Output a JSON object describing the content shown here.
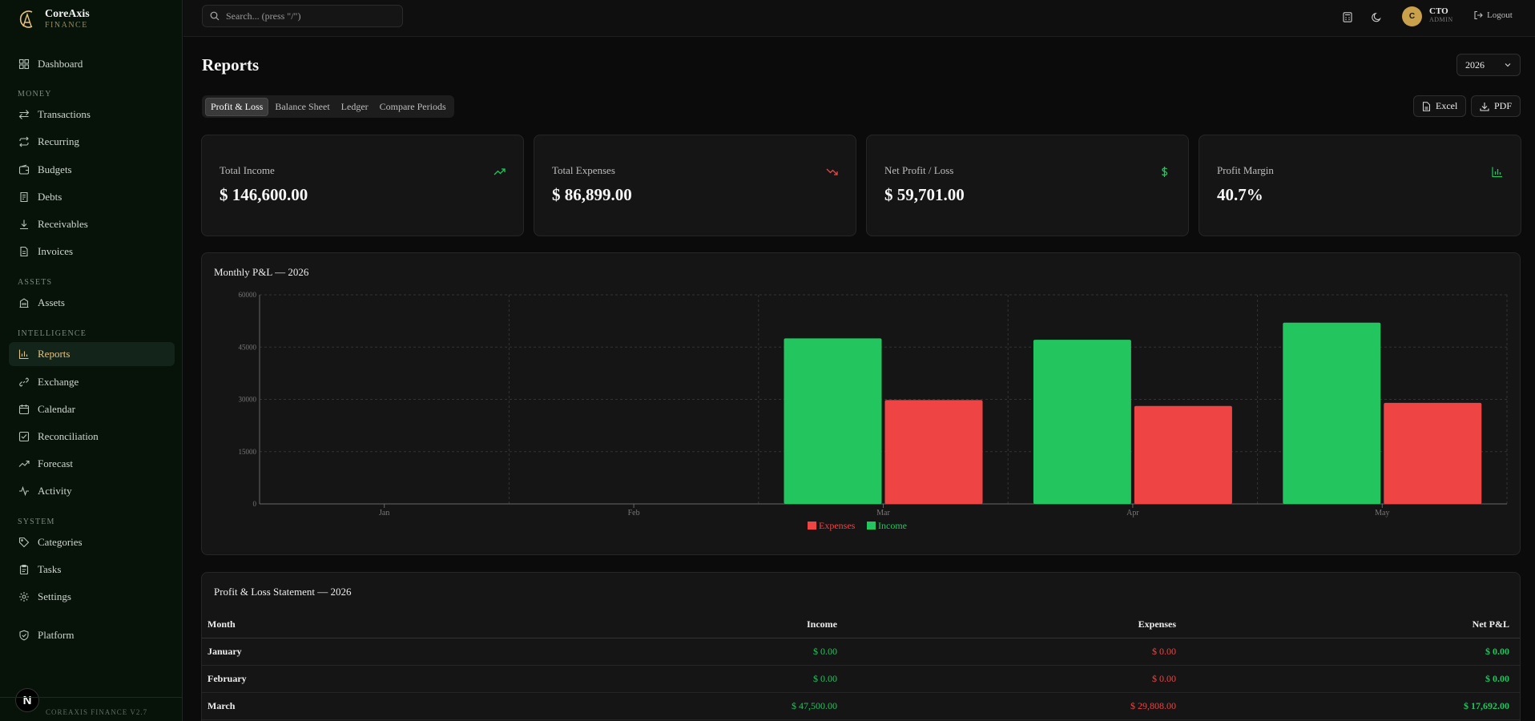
{
  "brand": {
    "name": "CoreAxis",
    "sub": "FINANCE",
    "accent": "#e8c27a"
  },
  "sidebar": {
    "items": [
      {
        "label": "Dashboard",
        "icon": "grid-icon"
      },
      {
        "group": "MONEY"
      },
      {
        "label": "Transactions",
        "icon": "arrows-left-right-icon"
      },
      {
        "label": "Recurring",
        "icon": "repeat-icon"
      },
      {
        "label": "Budgets",
        "icon": "wallet-icon"
      },
      {
        "label": "Debts",
        "icon": "credit-card-icon"
      },
      {
        "label": "Receivables",
        "icon": "download-arrow-icon"
      },
      {
        "label": "Invoices",
        "icon": "file-icon"
      },
      {
        "group": "ASSETS"
      },
      {
        "label": "Assets",
        "icon": "building-icon"
      },
      {
        "group": "INTELLIGENCE"
      },
      {
        "label": "Reports",
        "icon": "bar-chart-icon",
        "active": true
      },
      {
        "label": "Exchange",
        "icon": "link-icon"
      },
      {
        "label": "Calendar",
        "icon": "calendar-icon"
      },
      {
        "label": "Reconciliation",
        "icon": "check-square-icon"
      },
      {
        "label": "Forecast",
        "icon": "trend-up-icon"
      },
      {
        "label": "Activity",
        "icon": "pulse-icon"
      },
      {
        "group": "SYSTEM"
      },
      {
        "label": "Categories",
        "icon": "tag-icon"
      },
      {
        "label": "Tasks",
        "icon": "clipboard-icon"
      },
      {
        "label": "Settings",
        "icon": "gear-icon"
      },
      {
        "label": "Platform",
        "icon": "shield-check-icon"
      }
    ],
    "version": "COREAXIS FINANCE V2.7",
    "badge": "N"
  },
  "topbar": {
    "search_placeholder": "Search... (press \"/\")",
    "user_initial": "C",
    "user_name": "CTO",
    "user_role": "ADMIN",
    "logout": "Logout"
  },
  "page": {
    "title": "Reports",
    "year": "2026",
    "tabs": [
      "Profit & Loss",
      "Balance Sheet",
      "Ledger",
      "Compare Periods"
    ],
    "active_tab": 0,
    "export_excel": "Excel",
    "export_pdf": "PDF"
  },
  "cards": [
    {
      "label": "Total Income",
      "value": "$ 146,600.00",
      "icon": "trend-up-icon",
      "color": "#22c55e"
    },
    {
      "label": "Total Expenses",
      "value": "$ 86,899.00",
      "icon": "trend-down-icon",
      "color": "#ef4444"
    },
    {
      "label": "Net Profit / Loss",
      "value": "$ 59,701.00",
      "icon": "dollar-icon",
      "color": "#22c55e"
    },
    {
      "label": "Profit Margin",
      "value": "40.7%",
      "icon": "bar-chart-icon",
      "color": "#22c55e"
    }
  ],
  "chart_data": {
    "type": "bar",
    "title": "Monthly P&L — 2026",
    "categories": [
      "Jan",
      "Feb",
      "Mar",
      "Apr",
      "May"
    ],
    "series": [
      {
        "name": "Income",
        "values": [
          0,
          0,
          47500,
          47100,
          52000
        ],
        "color": "#22c55e"
      },
      {
        "name": "Expenses",
        "values": [
          0,
          0,
          29808,
          28100,
          29000
        ],
        "color": "#ef4444"
      }
    ],
    "legend": [
      "Expenses",
      "Income"
    ],
    "yticks": [
      0,
      15000,
      30000,
      45000,
      60000
    ],
    "ylim": [
      0,
      60000
    ],
    "grid": true,
    "legend_position": "bottom"
  },
  "statement": {
    "title": "Profit & Loss Statement — 2026",
    "columns": [
      "Month",
      "Income",
      "Expenses",
      "Net P&L"
    ],
    "rows": [
      {
        "month": "January",
        "income": "$ 0.00",
        "expenses": "$ 0.00",
        "net": "$ 0.00"
      },
      {
        "month": "February",
        "income": "$ 0.00",
        "expenses": "$ 0.00",
        "net": "$ 0.00"
      },
      {
        "month": "March",
        "income": "$ 47,500.00",
        "expenses": "$ 29,808.00",
        "net": "$ 17,692.00"
      }
    ]
  }
}
